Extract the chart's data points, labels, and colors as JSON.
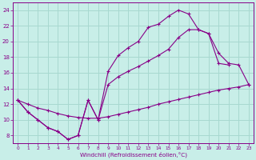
{
  "background_color": "#c8eee8",
  "grid_color": "#a8d8d0",
  "line_color": "#880088",
  "xlim": [
    -0.5,
    23.5
  ],
  "ylim": [
    7,
    25
  ],
  "xticks": [
    0,
    1,
    2,
    3,
    4,
    5,
    6,
    7,
    8,
    9,
    10,
    11,
    12,
    13,
    14,
    15,
    16,
    17,
    18,
    19,
    20,
    21,
    22,
    23
  ],
  "yticks": [
    8,
    10,
    12,
    14,
    16,
    18,
    20,
    22,
    24
  ],
  "xlabel": "Windchill (Refroidissement éolien,°C)",
  "line1_x": [
    0,
    1,
    2,
    3,
    4,
    5,
    6,
    7,
    8,
    9,
    10,
    11,
    12,
    13,
    14,
    15,
    16,
    17,
    18,
    19,
    20,
    21
  ],
  "line1_y": [
    12.5,
    11.0,
    10.0,
    9.0,
    8.5,
    7.5,
    8.0,
    12.5,
    10.0,
    16.2,
    18.2,
    19.2,
    20.0,
    21.8,
    22.2,
    23.2,
    24.0,
    23.5,
    21.5,
    21.0,
    17.2,
    17.0
  ],
  "line2_x": [
    0,
    1,
    2,
    3,
    4,
    5,
    6,
    7,
    8,
    9,
    10,
    11,
    12,
    13,
    14,
    15,
    16,
    17,
    18,
    19,
    20,
    21,
    22,
    23
  ],
  "line2_y": [
    12.5,
    11.0,
    10.0,
    9.0,
    8.5,
    7.5,
    8.0,
    12.5,
    10.0,
    14.5,
    15.5,
    16.2,
    16.8,
    17.5,
    18.2,
    19.0,
    20.5,
    21.5,
    21.5,
    21.0,
    18.5,
    17.2,
    17.0,
    14.5
  ],
  "line3_x": [
    0,
    1,
    2,
    3,
    4,
    5,
    6,
    7,
    8,
    9,
    10,
    11,
    12,
    13,
    14,
    15,
    16,
    17,
    18,
    19,
    20,
    21,
    22,
    23
  ],
  "line3_y": [
    12.5,
    12.0,
    11.5,
    11.2,
    10.8,
    10.5,
    10.3,
    10.2,
    10.2,
    10.4,
    10.7,
    11.0,
    11.3,
    11.6,
    12.0,
    12.3,
    12.6,
    12.9,
    13.2,
    13.5,
    13.8,
    14.0,
    14.2,
    14.5
  ]
}
